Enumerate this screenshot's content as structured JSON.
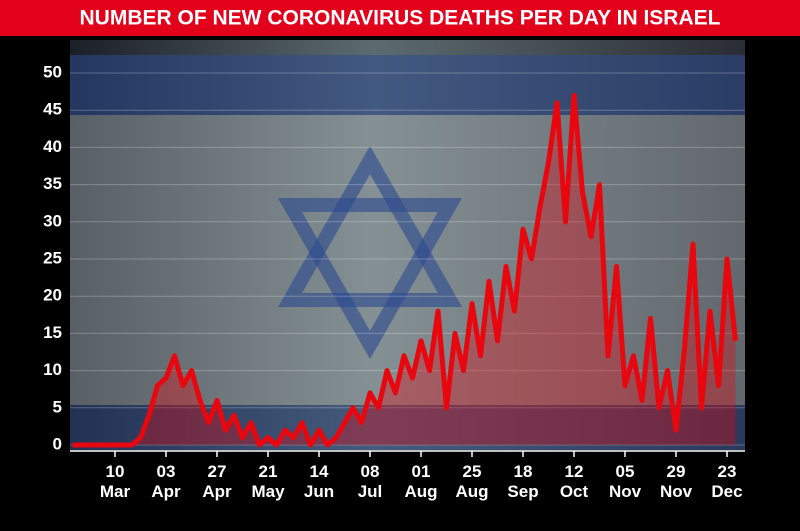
{
  "chart_data": {
    "type": "line",
    "title": "NUMBER OF NEW CORONAVIRUS DEATHS PER DAY IN ISRAEL",
    "x": [
      null,
      null,
      null,
      null,
      null,
      "10\nMar",
      null,
      null,
      null,
      null,
      null,
      "03\nApr",
      null,
      null,
      null,
      null,
      null,
      "27\nApr",
      null,
      null,
      null,
      null,
      null,
      "21\nMay",
      null,
      null,
      null,
      null,
      null,
      "14\nJun",
      null,
      null,
      null,
      null,
      null,
      "08\nJul",
      null,
      null,
      null,
      null,
      null,
      "01\nAug",
      null,
      null,
      null,
      null,
      null,
      "25\nAug",
      null,
      null,
      null,
      null,
      null,
      "18\nSep",
      null,
      null,
      null,
      null,
      null,
      "12\nOct",
      null,
      null,
      null,
      null,
      null,
      "05\nNov",
      null,
      null,
      null,
      null,
      null,
      "29\nNov",
      null,
      null,
      null,
      null,
      null,
      "23\nDec",
      null
    ],
    "series": [
      {
        "name": "Deaths",
        "color": "#e8070f",
        "values": [
          0,
          0,
          0,
          0,
          0,
          0,
          0,
          0,
          1,
          4,
          8,
          9,
          12,
          8,
          10,
          6,
          3,
          6,
          2,
          4,
          1,
          3,
          0,
          1,
          0,
          2,
          1,
          3,
          0,
          2,
          0,
          1,
          3,
          5,
          3,
          7,
          5,
          10,
          7,
          12,
          9,
          14,
          10,
          18,
          5,
          15,
          10,
          19,
          12,
          22,
          14,
          24,
          18,
          29,
          25,
          32,
          38,
          46,
          30,
          47,
          34,
          28,
          35,
          12,
          24,
          8,
          12,
          6,
          17,
          5,
          10,
          2,
          13,
          27,
          5,
          18,
          8,
          25,
          14
        ]
      }
    ],
    "ylim": [
      0,
      50
    ],
    "yticks": [
      0,
      5,
      10,
      15,
      20,
      25,
      30,
      35,
      40,
      45,
      50
    ],
    "grid": true
  }
}
